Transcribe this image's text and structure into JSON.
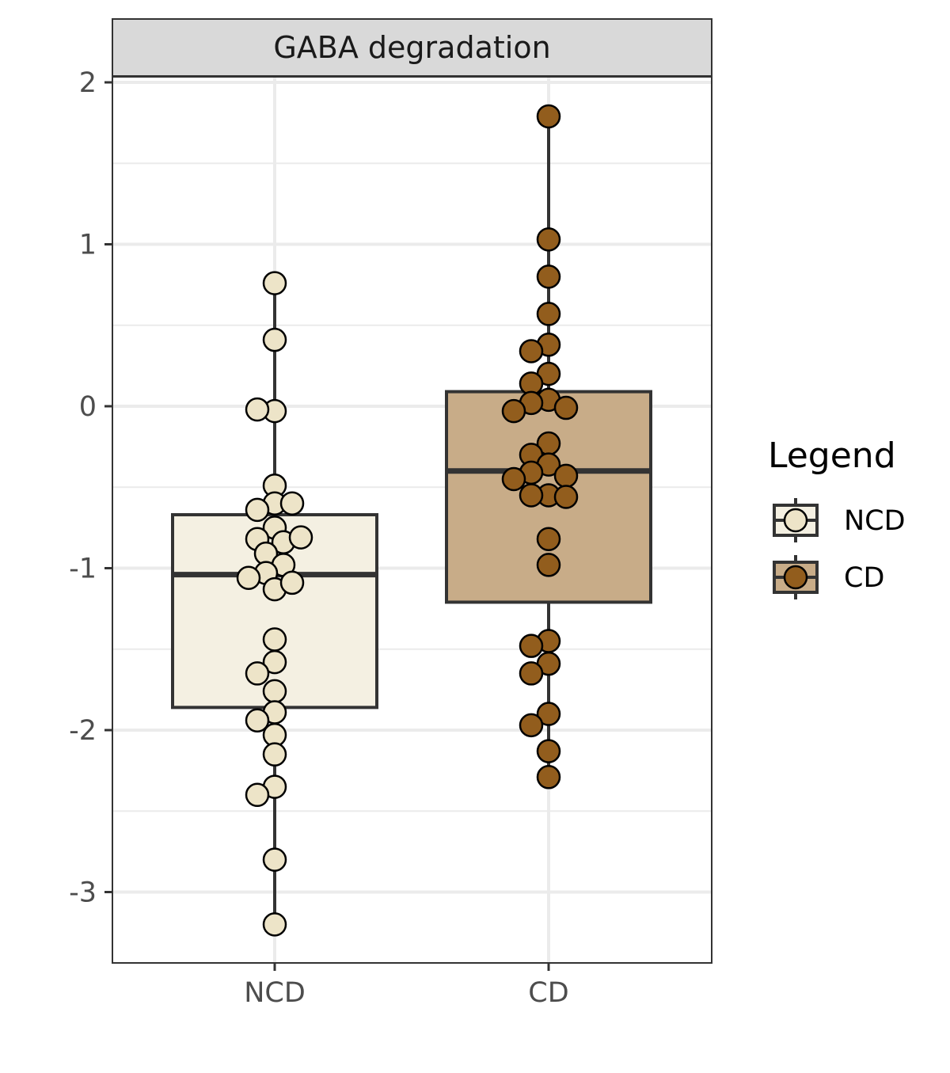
{
  "chart_data": {
    "type": "box",
    "facet_title": "GABA degradation",
    "xlabel": "",
    "ylabel": "",
    "ylim": [
      -3.45,
      2.05
    ],
    "y_ticks": [
      2,
      1,
      0,
      -1,
      -2,
      -3
    ],
    "y_tick_labels": [
      "2",
      "1",
      "0",
      "-1",
      "-2",
      "-3"
    ],
    "categories": [
      "NCD",
      "CD"
    ],
    "grid": true,
    "legend": {
      "title": "Legend",
      "placement": "right",
      "items": [
        {
          "label": "NCD",
          "fill": "#ede4c8",
          "box_fill": "#f4f0e2"
        },
        {
          "label": "CD",
          "fill": "#925d1d",
          "box_fill": "#c8ac88"
        }
      ]
    },
    "series": [
      {
        "name": "NCD",
        "point_color": "#ede4c8",
        "box_color": "#f4f0e2",
        "box": {
          "lower_whisker": -3.2,
          "q1": -1.86,
          "median": -1.04,
          "q3": -0.67,
          "upper_whisker": 0.76
        },
        "points": [
          0.76,
          0.41,
          -0.03,
          -0.02,
          -0.49,
          -0.6,
          -0.64,
          -0.6,
          -0.75,
          -0.82,
          -0.84,
          -0.81,
          -0.91,
          -0.98,
          -1.03,
          -1.06,
          -1.13,
          -1.09,
          -1.44,
          -1.58,
          -1.65,
          -1.76,
          -1.89,
          -1.94,
          -2.03,
          -2.15,
          -2.35,
          -2.4,
          -2.8,
          -3.2
        ]
      },
      {
        "name": "CD",
        "point_color": "#925d1d",
        "box_color": "#c8ac88",
        "box": {
          "lower_whisker": -2.29,
          "q1": -1.21,
          "median": -0.4,
          "q3": 0.09,
          "upper_whisker": 1.79
        },
        "points": [
          1.79,
          1.03,
          0.8,
          0.57,
          0.38,
          0.34,
          0.2,
          0.14,
          0.04,
          0.02,
          -0.01,
          -0.03,
          -0.23,
          -0.3,
          -0.36,
          -0.41,
          -0.43,
          -0.45,
          -0.55,
          -0.55,
          -0.56,
          -0.82,
          -0.98,
          -1.45,
          -1.48,
          -1.59,
          -1.65,
          -1.9,
          -1.97,
          -2.13,
          -2.29
        ]
      }
    ]
  }
}
